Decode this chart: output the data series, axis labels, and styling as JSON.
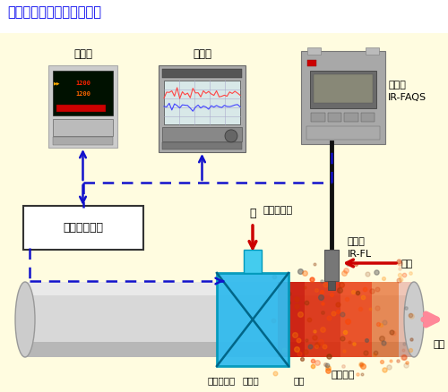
{
  "title": "【高周波焼入れ温度測定】",
  "title_color": "#0000EE",
  "bg_top": "#FFFFFF",
  "bg_main": "#FFFCE0",
  "labels": {
    "chosetsu": "調節計",
    "kiroku": "記録計",
    "hontai": "本体部\nIR-FAQS",
    "faiba": "ファイバ部",
    "shukou": "集光部\nIR-FL",
    "koushuha": "高周波発振器",
    "mizu": "水",
    "ea": "エア",
    "fume": "フューム",
    "kohen": "鋼片",
    "yudo": "誘導コイル",
    "reikya": "冷却器",
    "sansui": "散水"
  },
  "arrow_color": "#1111CC",
  "coil_color": "#33BBEE",
  "steel_light": "#E8E8E8",
  "steel_mid": "#C8C8C8",
  "steel_dark": "#A0A0A0"
}
